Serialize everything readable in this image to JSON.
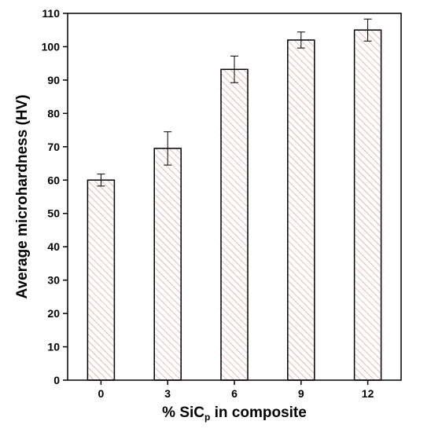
{
  "chart_data": {
    "type": "bar",
    "categories": [
      "0",
      "3",
      "6",
      "9",
      "12"
    ],
    "values": [
      60,
      69.5,
      93.2,
      102,
      105
    ],
    "errors": [
      1.8,
      5.0,
      4.0,
      2.4,
      3.3
    ],
    "xlabel_main": "% SiC",
    "xlabel_sub": "p",
    "xlabel_rest": " in composite",
    "ylabel": "Average microhardness (HV)",
    "ylim": [
      0,
      110
    ],
    "yticks": [
      "0",
      "10",
      "20",
      "30",
      "40",
      "50",
      "60",
      "70",
      "80",
      "90",
      "100",
      "110"
    ],
    "bar_fill": "hatched",
    "bar_hatch_color": "#d98a8a",
    "bar_edge_color": "#000000",
    "grid": false
  }
}
